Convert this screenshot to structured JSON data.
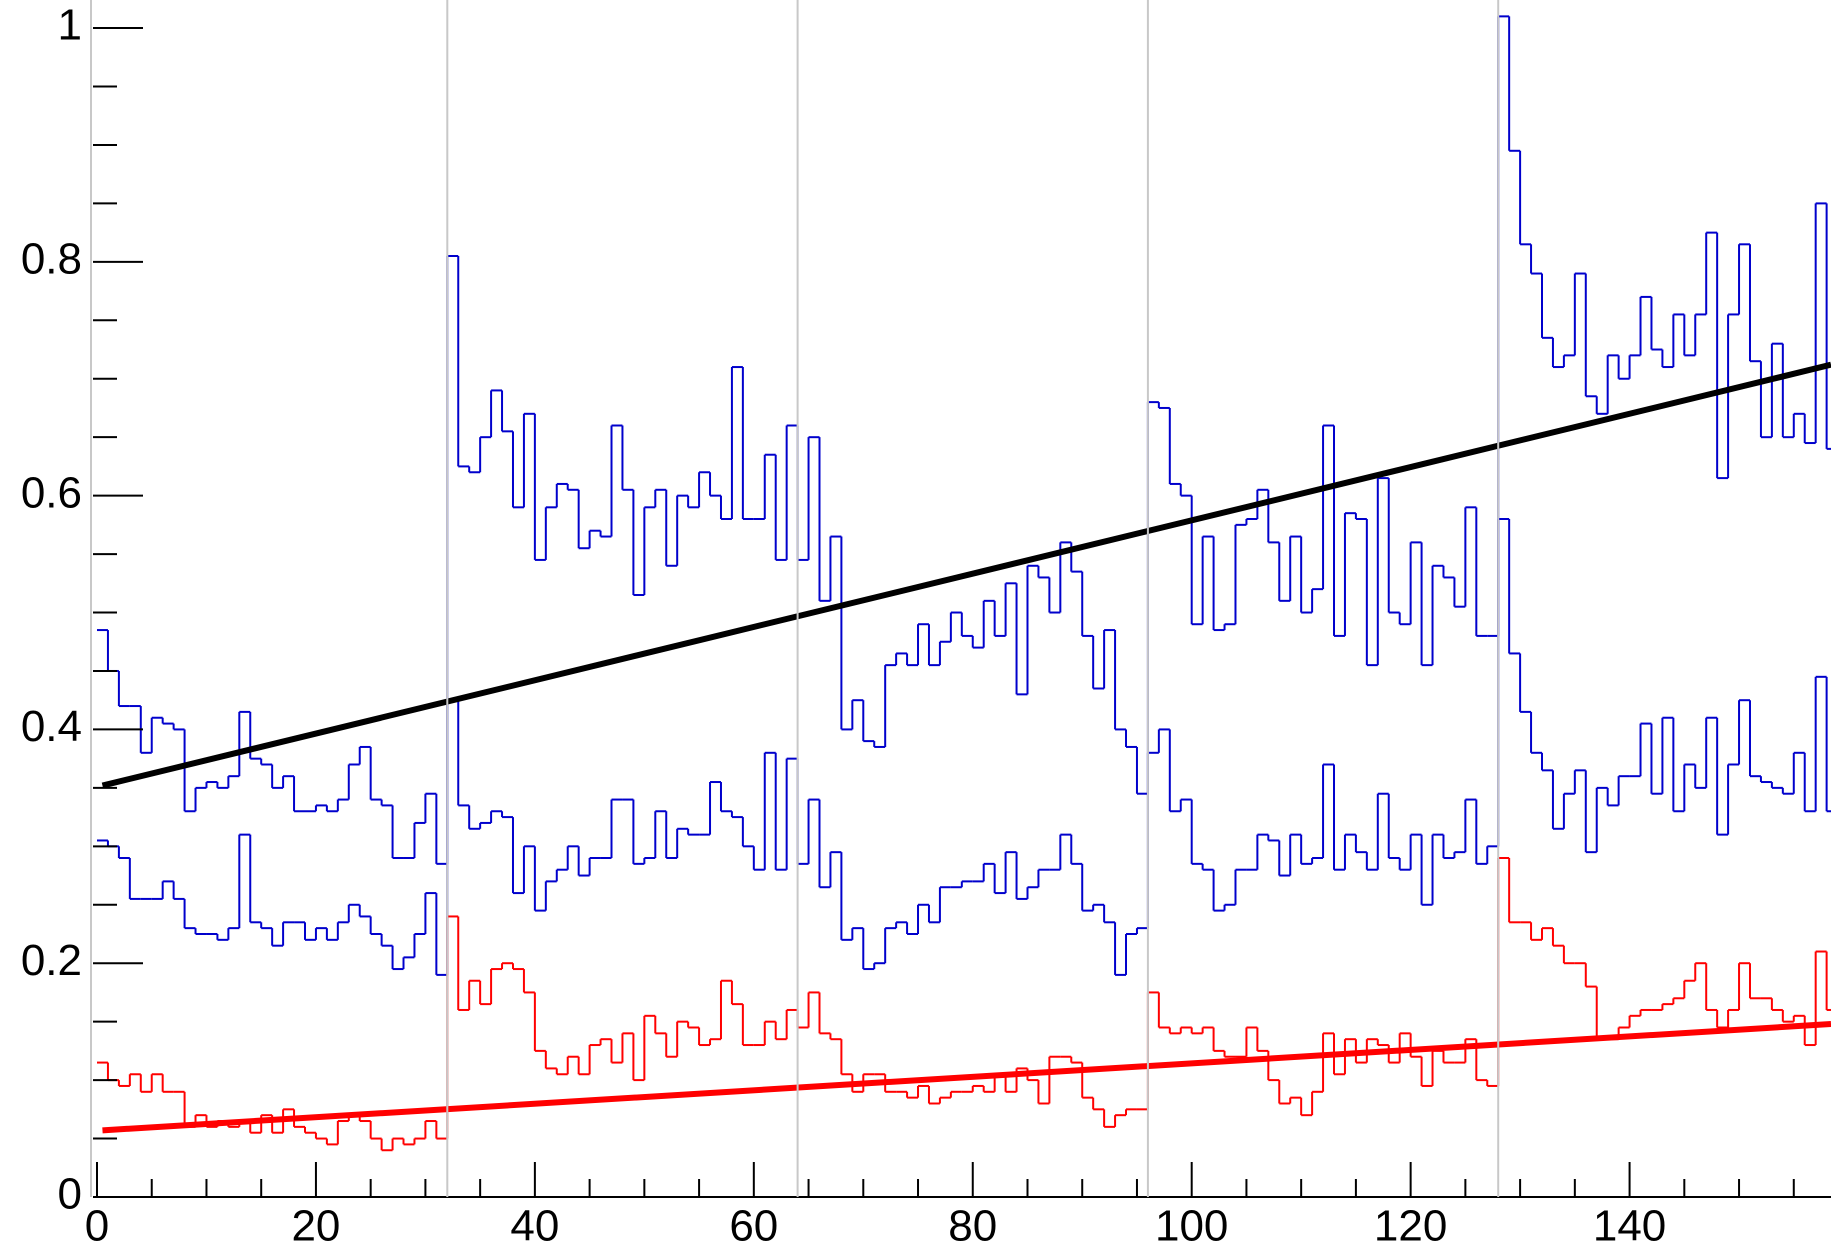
{
  "chart_data": {
    "type": "histogram",
    "bins": [
      0,
      1,
      2,
      3,
      4,
      5,
      6,
      7,
      8,
      9,
      10,
      11,
      12,
      13,
      14,
      15,
      16,
      17,
      18,
      19,
      20,
      21,
      22,
      23,
      24,
      25,
      26,
      27,
      28,
      29,
      30,
      31,
      32,
      33,
      34,
      35,
      36,
      37,
      38,
      39,
      40,
      41,
      42,
      43,
      44,
      45,
      46,
      47,
      48,
      49,
      50,
      51,
      52,
      53,
      54,
      55,
      56,
      57,
      58,
      59,
      60,
      61,
      62,
      63,
      64,
      65,
      66,
      67,
      68,
      69,
      70,
      71,
      72,
      73,
      74,
      75,
      76,
      77,
      78,
      79,
      80,
      81,
      82,
      83,
      84,
      85,
      86,
      87,
      88,
      89,
      90,
      91,
      92,
      93,
      94,
      95,
      96,
      97,
      98,
      99,
      100,
      101,
      102,
      103,
      104,
      105,
      106,
      107,
      108,
      109,
      110,
      111,
      112,
      113,
      114,
      115,
      116,
      117,
      118,
      119,
      120,
      121,
      122,
      123,
      124,
      125,
      126,
      127,
      128,
      129,
      130,
      131,
      132,
      133,
      134,
      135,
      136,
      137,
      138,
      139,
      140,
      141,
      142,
      143,
      144,
      145,
      146,
      147,
      148,
      149,
      150,
      151,
      152,
      153,
      154,
      155,
      156,
      157,
      158,
      159
    ],
    "series": [
      {
        "color": "#0000cc",
        "values": [
          0.485,
          0.45,
          0.42,
          0.42,
          0.38,
          0.41,
          0.405,
          0.4,
          0.33,
          0.35,
          0.355,
          0.35,
          0.36,
          0.415,
          0.375,
          0.37,
          0.35,
          0.36,
          0.33,
          0.33,
          0.335,
          0.33,
          0.34,
          0.37,
          0.385,
          0.34,
          0.335,
          0.29,
          0.29,
          0.32,
          0.345,
          0.285,
          0.805,
          0.625,
          0.62,
          0.65,
          0.69,
          0.655,
          0.59,
          0.67,
          0.545,
          0.59,
          0.61,
          0.605,
          0.555,
          0.57,
          0.565,
          0.66,
          0.605,
          0.515,
          0.59,
          0.605,
          0.54,
          0.6,
          0.59,
          0.62,
          0.6,
          0.58,
          0.71,
          0.58,
          0.58,
          0.635,
          0.545,
          0.66,
          0.545,
          0.65,
          0.51,
          0.565,
          0.4,
          0.425,
          0.39,
          0.385,
          0.455,
          0.465,
          0.455,
          0.49,
          0.455,
          0.475,
          0.5,
          0.48,
          0.47,
          0.51,
          0.48,
          0.525,
          0.43,
          0.54,
          0.53,
          0.5,
          0.56,
          0.535,
          0.48,
          0.435,
          0.485,
          0.4,
          0.385,
          0.345,
          0.68,
          0.675,
          0.61,
          0.6,
          0.49,
          0.565,
          0.485,
          0.49,
          0.575,
          0.58,
          0.605,
          0.56,
          0.51,
          0.565,
          0.5,
          0.52,
          0.66,
          0.48,
          0.585,
          0.58,
          0.455,
          0.615,
          0.5,
          0.49,
          0.56,
          0.455,
          0.54,
          0.53,
          0.505,
          0.59,
          0.48,
          0.48,
          1.01,
          0.895,
          0.815,
          0.79,
          0.735,
          0.71,
          0.72,
          0.79,
          0.685,
          0.67,
          0.72,
          0.7,
          0.72,
          0.77,
          0.725,
          0.71,
          0.755,
          0.72,
          0.755,
          0.825,
          0.615,
          0.755,
          0.815,
          0.715,
          0.65,
          0.73,
          0.65,
          0.67,
          0.645,
          0.85,
          0.64
        ]
      },
      {
        "color": "#0000cc",
        "values": [
          0.305,
          0.3,
          0.29,
          0.255,
          0.255,
          0.255,
          0.27,
          0.255,
          0.23,
          0.225,
          0.225,
          0.22,
          0.23,
          0.31,
          0.235,
          0.23,
          0.215,
          0.235,
          0.235,
          0.22,
          0.23,
          0.22,
          0.235,
          0.25,
          0.24,
          0.225,
          0.215,
          0.195,
          0.205,
          0.225,
          0.26,
          0.19,
          0.425,
          0.335,
          0.315,
          0.32,
          0.33,
          0.325,
          0.26,
          0.3,
          0.245,
          0.27,
          0.28,
          0.3,
          0.275,
          0.29,
          0.29,
          0.34,
          0.34,
          0.285,
          0.29,
          0.33,
          0.29,
          0.315,
          0.31,
          0.31,
          0.355,
          0.33,
          0.325,
          0.3,
          0.28,
          0.38,
          0.28,
          0.375,
          0.285,
          0.34,
          0.265,
          0.295,
          0.22,
          0.23,
          0.195,
          0.2,
          0.23,
          0.235,
          0.225,
          0.25,
          0.235,
          0.265,
          0.265,
          0.27,
          0.27,
          0.285,
          0.26,
          0.295,
          0.255,
          0.265,
          0.28,
          0.28,
          0.31,
          0.285,
          0.245,
          0.25,
          0.235,
          0.19,
          0.225,
          0.23,
          0.38,
          0.4,
          0.33,
          0.34,
          0.285,
          0.28,
          0.245,
          0.25,
          0.28,
          0.28,
          0.31,
          0.305,
          0.275,
          0.31,
          0.285,
          0.29,
          0.37,
          0.28,
          0.31,
          0.295,
          0.28,
          0.345,
          0.29,
          0.28,
          0.31,
          0.25,
          0.31,
          0.29,
          0.295,
          0.34,
          0.285,
          0.3,
          0.58,
          0.465,
          0.415,
          0.38,
          0.365,
          0.315,
          0.345,
          0.365,
          0.295,
          0.35,
          0.335,
          0.36,
          0.36,
          0.405,
          0.345,
          0.41,
          0.33,
          0.37,
          0.35,
          0.41,
          0.31,
          0.37,
          0.425,
          0.36,
          0.355,
          0.35,
          0.345,
          0.38,
          0.33,
          0.445,
          0.33
        ]
      },
      {
        "color": "#ff0000",
        "values": [
          0.115,
          0.1,
          0.095,
          0.105,
          0.09,
          0.105,
          0.09,
          0.09,
          0.06,
          0.07,
          0.06,
          0.065,
          0.06,
          0.065,
          0.055,
          0.07,
          0.055,
          0.075,
          0.06,
          0.055,
          0.05,
          0.045,
          0.065,
          0.07,
          0.065,
          0.05,
          0.04,
          0.05,
          0.045,
          0.05,
          0.065,
          0.05,
          0.24,
          0.16,
          0.185,
          0.165,
          0.195,
          0.2,
          0.195,
          0.175,
          0.125,
          0.11,
          0.105,
          0.12,
          0.105,
          0.13,
          0.135,
          0.115,
          0.14,
          0.1,
          0.155,
          0.14,
          0.12,
          0.15,
          0.145,
          0.13,
          0.135,
          0.185,
          0.165,
          0.13,
          0.13,
          0.15,
          0.135,
          0.16,
          0.145,
          0.175,
          0.14,
          0.135,
          0.105,
          0.09,
          0.105,
          0.105,
          0.09,
          0.09,
          0.085,
          0.095,
          0.08,
          0.085,
          0.09,
          0.09,
          0.095,
          0.09,
          0.105,
          0.09,
          0.11,
          0.1,
          0.08,
          0.12,
          0.12,
          0.115,
          0.085,
          0.075,
          0.06,
          0.07,
          0.075,
          0.075,
          0.175,
          0.145,
          0.14,
          0.145,
          0.14,
          0.145,
          0.125,
          0.12,
          0.12,
          0.145,
          0.125,
          0.1,
          0.08,
          0.085,
          0.07,
          0.09,
          0.14,
          0.105,
          0.135,
          0.115,
          0.135,
          0.13,
          0.115,
          0.14,
          0.12,
          0.095,
          0.125,
          0.115,
          0.115,
          0.135,
          0.1,
          0.095,
          0.29,
          0.235,
          0.235,
          0.22,
          0.23,
          0.215,
          0.2,
          0.2,
          0.18,
          0.135,
          0.135,
          0.145,
          0.155,
          0.16,
          0.16,
          0.165,
          0.17,
          0.185,
          0.2,
          0.16,
          0.145,
          0.16,
          0.2,
          0.17,
          0.17,
          0.16,
          0.15,
          0.155,
          0.13,
          0.21,
          0.16
        ]
      }
    ],
    "fits": [
      {
        "color": "#000000",
        "x": [
          0.5,
          158.4
        ],
        "values": [
          0.352,
          0.712
        ]
      },
      {
        "color": "#ff0000",
        "x": [
          0.5,
          158.4
        ],
        "values": [
          0.057,
          0.148
        ]
      }
    ],
    "vlines": [
      32,
      64,
      96,
      128
    ],
    "xlim": [
      0,
      158.4
    ],
    "ylim": [
      0,
      1.024
    ],
    "xticks": [
      0,
      20,
      40,
      60,
      80,
      100,
      120,
      140
    ],
    "xminorticks": [
      5,
      10,
      15,
      25,
      30,
      35,
      45,
      50,
      55,
      65,
      70,
      75,
      85,
      90,
      95,
      105,
      110,
      115,
      125,
      130,
      135,
      145,
      150,
      155
    ],
    "yticks": [
      0,
      0.2,
      0.4,
      0.6,
      0.8,
      1
    ],
    "yminorticks": [
      0.05,
      0.1,
      0.15,
      0.25,
      0.3,
      0.35,
      0.45,
      0.5,
      0.55,
      0.65,
      0.7,
      0.75,
      0.85,
      0.9,
      0.95
    ]
  }
}
